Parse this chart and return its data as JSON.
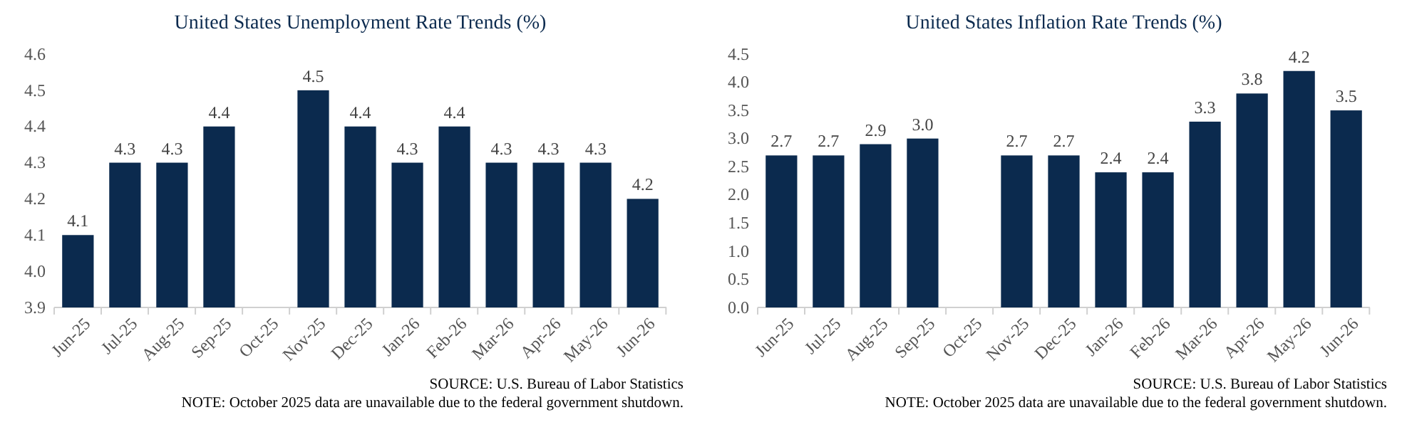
{
  "chart_data": [
    {
      "type": "bar",
      "title": "United States Unemployment Rate Trends (%)",
      "categories": [
        "Jun-25",
        "Jul-25",
        "Aug-25",
        "Sep-25",
        "Oct-25",
        "Nov-25",
        "Dec-25",
        "Jan-26",
        "Feb-26",
        "Mar-26",
        "Apr-26",
        "May-26",
        "Jun-26"
      ],
      "values": [
        4.1,
        4.3,
        4.3,
        4.4,
        null,
        4.5,
        4.4,
        4.3,
        4.4,
        4.3,
        4.3,
        4.3,
        4.2
      ],
      "color": "#0b2a4e",
      "value_labels": [
        "4.1",
        "4.3",
        "4.3",
        "4.4",
        null,
        "4.5",
        "4.4",
        "4.3",
        "4.4",
        "4.3",
        "4.3",
        "4.3",
        "4.2"
      ],
      "ylim": [
        3.9,
        4.6
      ],
      "yticks": [
        3.9,
        {
          "value": 4,
          "label": "4.0"
        },
        4.1,
        4.2,
        4.3,
        4.4,
        4.5,
        4.6
      ],
      "grid": false,
      "annotations": [
        "SOURCE:  U.S. Bureau of Labor Statistics",
        "NOTE: October 2025 data are unavailable due to the federal government shutdown."
      ]
    },
    {
      "type": "bar",
      "title": "United States Inflation Rate Trends (%)",
      "categories": [
        "Jun-25",
        "Jul-25",
        "Aug-25",
        "Sep-25",
        "Oct-25",
        "Nov-25",
        "Dec-25",
        "Jan-26",
        "Feb-26",
        "Mar-26",
        "Apr-26",
        "May-26",
        "Jun-26"
      ],
      "values": [
        2.7,
        2.7,
        2.9,
        3.0,
        null,
        2.7,
        2.7,
        2.4,
        2.4,
        3.3,
        3.8,
        4.2,
        3.5
      ],
      "color": "#0b2a4e",
      "value_labels": [
        "2.7",
        "2.7",
        "2.9",
        "3.0",
        null,
        "2.7",
        "2.7",
        "2.4",
        "2.4",
        "3.3",
        "3.8",
        "4.2",
        "3.5"
      ],
      "ylim": [
        0,
        4.5
      ],
      "yticks": [
        {
          "value": 0,
          "label": "0.0"
        },
        0.5,
        {
          "value": 1,
          "label": "1.0"
        },
        1.5,
        {
          "value": 2,
          "label": "2.0"
        },
        2.5,
        {
          "value": 3,
          "label": "3.0"
        },
        3.5,
        {
          "value": 4,
          "label": "4.0"
        },
        4.5
      ],
      "grid": false,
      "annotations": [
        "SOURCE:  U.S. Bureau of Labor Statistics",
        "NOTE: October 2025 data are unavailable due to the federal government shutdown."
      ]
    }
  ]
}
